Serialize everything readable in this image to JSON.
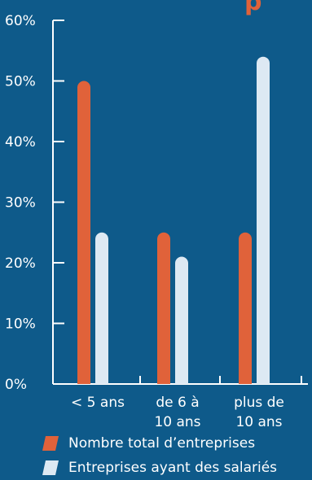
{
  "chart_data": {
    "type": "bar",
    "title_fragment": "p",
    "categories": [
      [
        "< 5 ans"
      ],
      [
        "de 6 à",
        "10 ans"
      ],
      [
        "plus de",
        "10 ans"
      ]
    ],
    "series": [
      {
        "name": "Nombre total d’entreprises",
        "values": [
          50,
          25,
          25
        ],
        "color": "#e0623a"
      },
      {
        "name": "Entreprises ayant des salariés",
        "values": [
          25,
          21,
          54
        ],
        "color": "#dde9f3"
      }
    ],
    "y_ticks": [
      "0%",
      "10%",
      "20%",
      "30%",
      "40%",
      "50%",
      "60%"
    ],
    "ylim": [
      0,
      60
    ],
    "grid": false,
    "legend_position": "bottom"
  },
  "colors": {
    "background": "#0e5a8a",
    "axis": "#ffffff",
    "title": "#e0623a"
  }
}
